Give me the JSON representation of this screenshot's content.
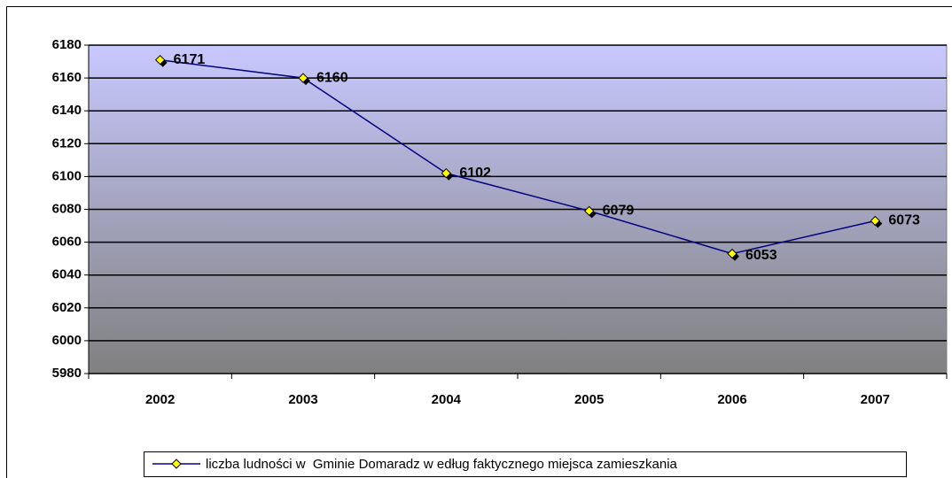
{
  "chart_data": {
    "type": "line",
    "categories": [
      "2002",
      "2003",
      "2004",
      "2005",
      "2006",
      "2007"
    ],
    "series": [
      {
        "name": "liczba ludności w  Gminie Domaradz w edług faktycznego miejsca zamieszkania",
        "color": "#000080",
        "values": [
          6171,
          6160,
          6102,
          6079,
          6053,
          6073
        ]
      }
    ],
    "ylim": [
      5980,
      6180
    ],
    "yticks": [
      5980,
      6000,
      6020,
      6040,
      6060,
      6080,
      6100,
      6120,
      6140,
      6160,
      6180
    ],
    "grid": true,
    "legend": "bottom"
  }
}
